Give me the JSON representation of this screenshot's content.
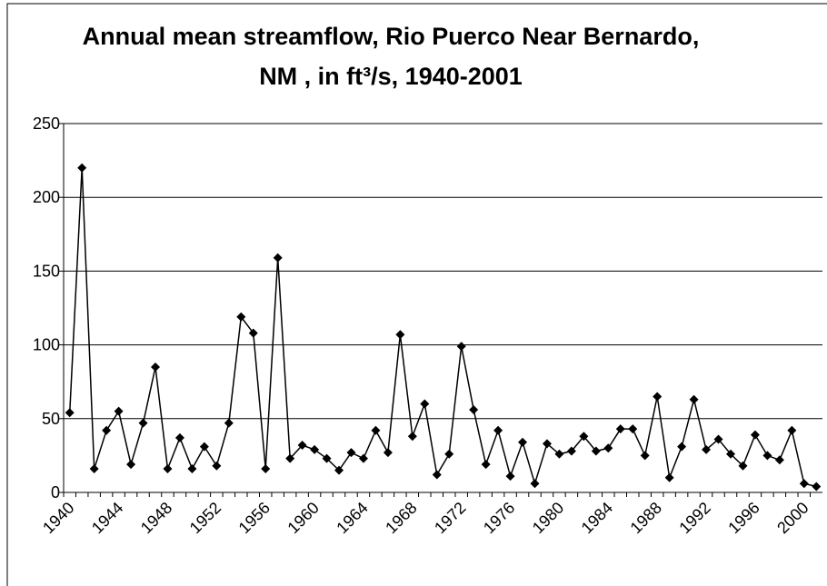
{
  "chart_data": {
    "type": "line",
    "title": "Annual mean streamflow, Rio Puerco Near Bernardo, NM , in ft³/s, 1940-2001",
    "x": [
      1940,
      1941,
      1942,
      1943,
      1944,
      1945,
      1946,
      1947,
      1948,
      1949,
      1950,
      1951,
      1952,
      1953,
      1954,
      1955,
      1956,
      1957,
      1958,
      1959,
      1960,
      1961,
      1962,
      1963,
      1964,
      1965,
      1966,
      1967,
      1968,
      1969,
      1970,
      1971,
      1972,
      1973,
      1974,
      1975,
      1976,
      1977,
      1978,
      1979,
      1980,
      1981,
      1982,
      1983,
      1984,
      1985,
      1986,
      1987,
      1988,
      1989,
      1990,
      1991,
      1992,
      1993,
      1994,
      1995,
      1996,
      1997,
      1998,
      1999,
      2000,
      2001
    ],
    "series": [
      {
        "color": "#000000",
        "values": [
          54,
          220,
          16,
          42,
          55,
          19,
          47,
          85,
          16,
          37,
          16,
          31,
          18,
          47,
          119,
          108,
          16,
          159,
          23,
          32,
          29,
          23,
          15,
          27,
          23,
          42,
          27,
          107,
          38,
          60,
          12,
          26,
          99,
          56,
          19,
          42,
          11,
          34,
          6,
          33,
          26,
          28,
          38,
          28,
          30,
          43,
          43,
          25,
          65,
          10,
          31,
          63,
          29,
          36,
          26,
          18,
          39,
          25,
          22,
          42,
          6,
          4
        ]
      }
    ],
    "xlim": [
      1939.5,
      2001.5
    ],
    "xticks": [
      1940,
      1944,
      1948,
      1952,
      1956,
      1960,
      1964,
      1968,
      1972,
      1976,
      1980,
      1984,
      1988,
      1992,
      1996,
      2000
    ],
    "ylim": [
      0,
      250
    ],
    "yticks": [
      0,
      50,
      100,
      150,
      200,
      250
    ],
    "grid": true
  }
}
